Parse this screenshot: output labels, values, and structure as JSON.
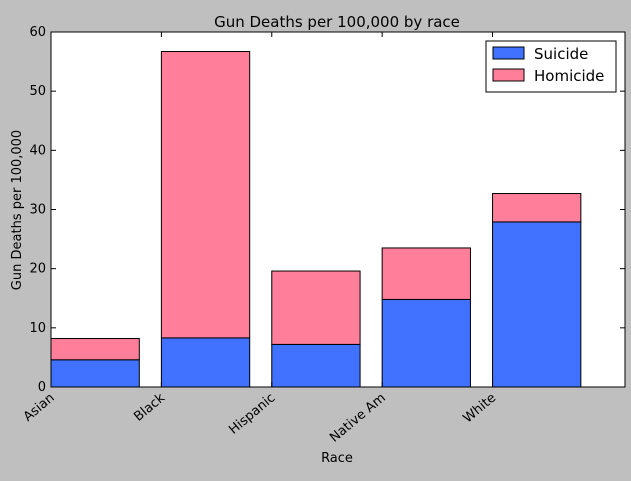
{
  "chart_data": {
    "type": "bar",
    "stacked": true,
    "title": "Gun Deaths per 100,000 by race",
    "xlabel": "Race",
    "ylabel": "Gun Deaths per 100,000",
    "categories": [
      "Asian",
      "Black",
      "Hispanic",
      "Native Am",
      "White"
    ],
    "series": [
      {
        "name": "Suicide",
        "color": "#4071ff",
        "values": [
          4.6,
          8.3,
          7.2,
          14.8,
          27.9
        ]
      },
      {
        "name": "Homicide",
        "color": "#ff7f9a",
        "values": [
          3.6,
          48.4,
          12.4,
          8.7,
          4.8
        ]
      }
    ],
    "ylim": [
      0,
      60
    ],
    "yticks": [
      0,
      10,
      20,
      30,
      40,
      50,
      60
    ],
    "grid": false,
    "legend_position": "top-right",
    "background": "#bfbfbf",
    "plot_background": "#ffffff"
  }
}
